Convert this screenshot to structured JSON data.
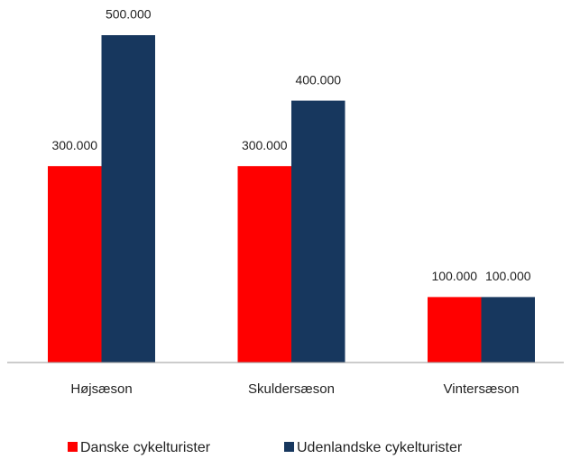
{
  "chart_data": {
    "type": "bar",
    "categories": [
      "Højsæson",
      "Skuldersæson",
      "Vintersæson"
    ],
    "series": [
      {
        "name": "Danske cykelturister",
        "color": "#ff0000",
        "values": [
          300000,
          300000,
          100000
        ],
        "value_labels": [
          "300.000",
          "300.000",
          "100.000"
        ]
      },
      {
        "name": "Udenlandske cykelturister",
        "color": "#17375e",
        "values": [
          500000,
          400000,
          100000
        ],
        "value_labels": [
          "500.000",
          "400.000",
          "100.000"
        ]
      }
    ],
    "legend": "bottom"
  }
}
